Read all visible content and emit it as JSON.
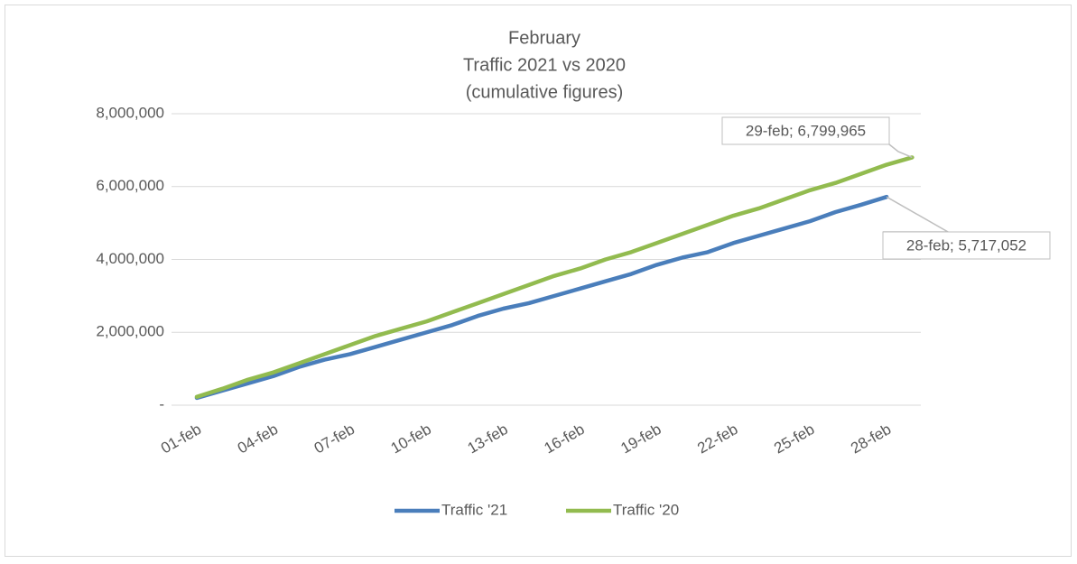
{
  "chart_data": {
    "type": "line",
    "title": [
      "February",
      "Traffic 2021 vs 2020",
      "(cumulative figures)"
    ],
    "categories": [
      "01-feb",
      null,
      null,
      "04-feb",
      null,
      null,
      "07-feb",
      null,
      null,
      "10-feb",
      null,
      null,
      "13-feb",
      null,
      null,
      "16-feb",
      null,
      null,
      "19-feb",
      null,
      null,
      "22-feb",
      null,
      null,
      "25-feb",
      null,
      null,
      "28-feb",
      null
    ],
    "series": [
      {
        "name": "Traffic '21",
        "color": "#4a7ebb",
        "values": [
          200000,
          400000,
          600000,
          800000,
          1050000,
          1250000,
          1400000,
          1600000,
          1800000,
          2000000,
          2200000,
          2450000,
          2650000,
          2800000,
          3000000,
          3200000,
          3400000,
          3600000,
          3850000,
          4050000,
          4200000,
          4450000,
          4650000,
          4850000,
          5050000,
          5300000,
          5500000,
          5717052,
          null
        ],
        "value_labels": [
          null,
          null,
          null,
          null,
          null,
          null,
          null,
          null,
          null,
          null,
          null,
          null,
          null,
          null,
          null,
          null,
          null,
          null,
          null,
          null,
          null,
          null,
          null,
          null,
          null,
          null,
          null,
          "28-feb; 5,717,052",
          null
        ]
      },
      {
        "name": "Traffic '20",
        "color": "#92bb4f",
        "values": [
          230000,
          450000,
          700000,
          900000,
          1150000,
          1400000,
          1650000,
          1900000,
          2100000,
          2300000,
          2550000,
          2800000,
          3050000,
          3300000,
          3550000,
          3750000,
          4000000,
          4200000,
          4450000,
          4700000,
          4950000,
          5200000,
          5400000,
          5650000,
          5900000,
          6100000,
          6350000,
          6600000,
          6799965
        ],
        "value_labels": [
          null,
          null,
          null,
          null,
          null,
          null,
          null,
          null,
          null,
          null,
          null,
          null,
          null,
          null,
          null,
          null,
          null,
          null,
          null,
          null,
          null,
          null,
          null,
          null,
          null,
          null,
          null,
          null,
          "29-feb; 6,799,965"
        ]
      }
    ],
    "ylim": [
      0,
      8000000
    ],
    "yticks": [
      {
        "value": 0,
        "label": "-"
      },
      {
        "value": 2000000,
        "label": "2,000,000"
      },
      {
        "value": 4000000,
        "label": "4,000,000"
      },
      {
        "value": 6000000,
        "label": "6,000,000"
      },
      {
        "value": 8000000,
        "label": "8,000,000"
      }
    ],
    "grid": true,
    "legend": "bottom"
  }
}
